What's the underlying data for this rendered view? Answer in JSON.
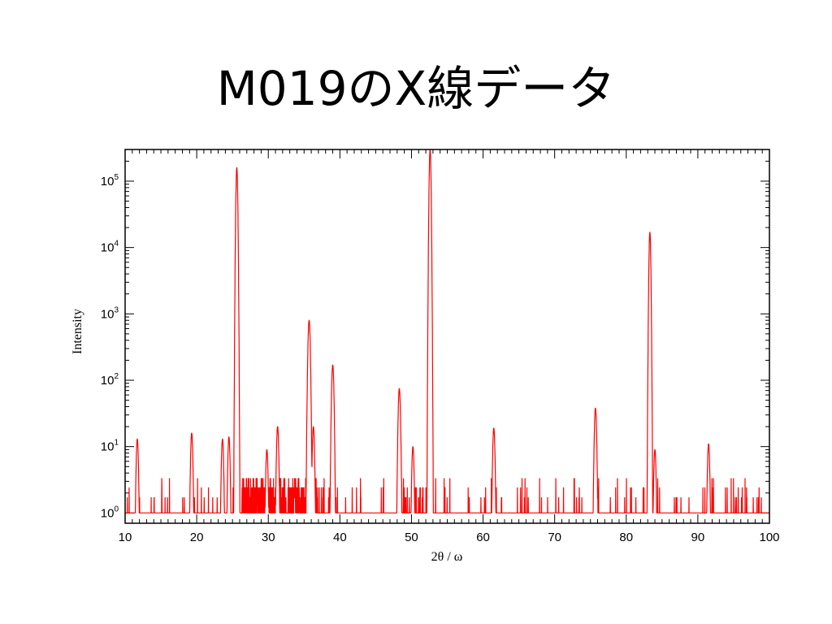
{
  "slide": {
    "title": "M019のX線データ"
  },
  "chart_data": {
    "type": "line",
    "xlabel": "2θ / ω",
    "ylabel": "Intensity",
    "xlim": [
      10,
      100
    ],
    "ylim": [
      0.7,
      300000
    ],
    "yscale": "log",
    "grid": false,
    "legend": "none",
    "series_color": "#ff0000",
    "x_ticks": [
      "10",
      "20",
      "30",
      "40",
      "50",
      "60",
      "70",
      "80",
      "90",
      "100"
    ],
    "y_ticks": [
      {
        "base": "10",
        "exp": "0"
      },
      {
        "base": "10",
        "exp": "1"
      },
      {
        "base": "10",
        "exp": "2"
      },
      {
        "base": "10",
        "exp": "3"
      },
      {
        "base": "10",
        "exp": "4"
      },
      {
        "base": "10",
        "exp": "5"
      }
    ],
    "peaks": [
      {
        "x": 11.7,
        "y": 13
      },
      {
        "x": 19.3,
        "y": 16
      },
      {
        "x": 23.6,
        "y": 13
      },
      {
        "x": 24.5,
        "y": 14
      },
      {
        "x": 25.6,
        "y": 160000
      },
      {
        "x": 29.8,
        "y": 9
      },
      {
        "x": 31.3,
        "y": 20
      },
      {
        "x": 35.7,
        "y": 800
      },
      {
        "x": 36.3,
        "y": 20
      },
      {
        "x": 39.0,
        "y": 170
      },
      {
        "x": 48.3,
        "y": 75
      },
      {
        "x": 50.2,
        "y": 10
      },
      {
        "x": 52.6,
        "y": 300000
      },
      {
        "x": 61.5,
        "y": 19
      },
      {
        "x": 75.7,
        "y": 38
      },
      {
        "x": 83.3,
        "y": 17000
      },
      {
        "x": 84.0,
        "y": 9
      },
      {
        "x": 91.5,
        "y": 11
      }
    ]
  }
}
